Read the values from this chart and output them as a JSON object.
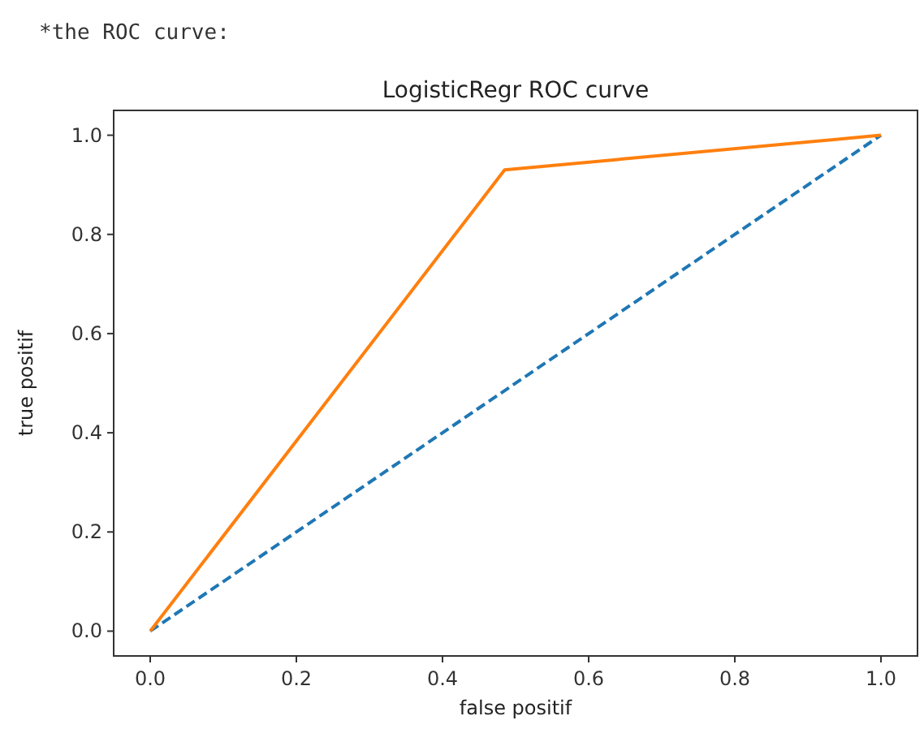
{
  "chart_data": {
    "type": "line",
    "title": "LogisticRegr ROC curve",
    "xlabel": "false positif",
    "ylabel": "true positif",
    "annotations": [
      "*the ROC curve:"
    ],
    "xlim": [
      -0.05,
      1.05
    ],
    "ylim": [
      -0.05,
      1.05
    ],
    "xticks": [
      {
        "value": 0,
        "label": "0.0"
      },
      0.2,
      0.4,
      0.6,
      0.8,
      {
        "value": 1,
        "label": "1.0"
      }
    ],
    "yticks": [
      {
        "value": 0,
        "label": "0.0"
      },
      0.2,
      0.4,
      0.6,
      0.8,
      {
        "value": 1,
        "label": "1.0"
      }
    ],
    "grid": false,
    "series": [
      {
        "color": "#1f77b4",
        "x": [
          0,
          1
        ],
        "values": [
          0,
          1
        ],
        "line_style": "dashed"
      },
      {
        "color": "#ff7f0e",
        "x": [
          0,
          0.485,
          1
        ],
        "values": [
          0,
          0.93,
          1
        ],
        "line_style": "solid"
      }
    ]
  }
}
